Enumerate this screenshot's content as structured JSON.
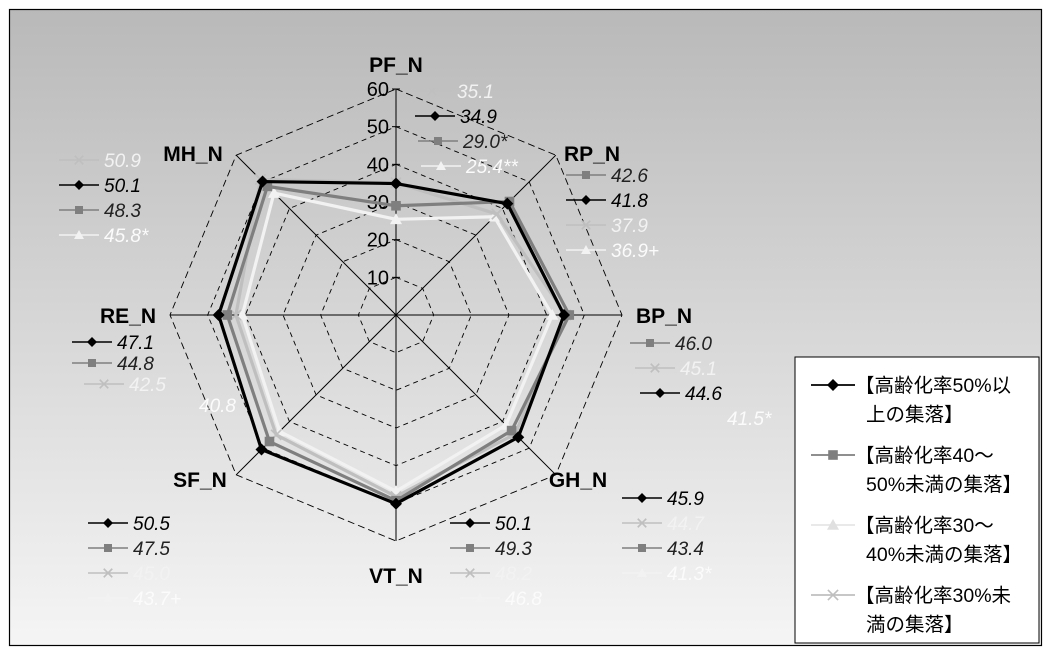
{
  "chart_data": {
    "type": "radar",
    "axes": [
      "PF_N",
      "RP_N",
      "BP_N",
      "GH_N",
      "VT_N",
      "SF_N",
      "RE_N",
      "MH_N"
    ],
    "rlim": [
      0,
      60
    ],
    "ticks": [
      "10",
      "20",
      "30",
      "40",
      "50",
      "60"
    ],
    "grid": "dashed",
    "legend_position": "right",
    "series": [
      {
        "name_lines": [
          "【高齢化率50%以",
          "上の集落】"
        ],
        "color": "#000000",
        "marker": "diamond",
        "values": [
          34.9,
          41.8,
          44.6,
          45.9,
          50.1,
          50.5,
          47.1,
          50.1
        ]
      },
      {
        "name_lines": [
          "【高齢化率40～",
          "50%未満の集落】"
        ],
        "color": "#7f7f7f",
        "marker": "square",
        "values": [
          29.0,
          42.6,
          46.0,
          43.4,
          49.3,
          47.5,
          44.8,
          48.3
        ]
      },
      {
        "name_lines": [
          "【高齢化率30～",
          "40%未満の集落】"
        ],
        "color": "#f2f2f2",
        "marker": "triangle",
        "values": [
          25.4,
          36.9,
          41.5,
          41.3,
          46.8,
          43.7,
          40.8,
          45.8
        ]
      },
      {
        "name_lines": [
          "【高齢化率30%未",
          "満の集落】"
        ],
        "color": "#bfbfbf",
        "marker": "x",
        "values": [
          35.1,
          37.9,
          45.1,
          44.7,
          48.2,
          45.0,
          42.5,
          50.9
        ]
      }
    ],
    "value_labels": {
      "PF_N": [
        {
          "s": 3,
          "text": "35.1"
        },
        {
          "s": 0,
          "text": "34.9"
        },
        {
          "s": 1,
          "text": "29.0*"
        },
        {
          "s": 2,
          "text": "25.4**"
        }
      ],
      "RP_N": [
        {
          "s": 1,
          "text": "42.6"
        },
        {
          "s": 0,
          "text": "41.8"
        },
        {
          "s": 3,
          "text": "37.9"
        },
        {
          "s": 2,
          "text": "36.9+"
        }
      ],
      "BP_N": [
        {
          "s": 1,
          "text": "46.0"
        },
        {
          "s": 3,
          "text": "45.1"
        },
        {
          "s": 0,
          "text": "44.6"
        },
        {
          "s": 2,
          "text": "41.5*"
        }
      ],
      "GH_N": [
        {
          "s": 0,
          "text": "45.9"
        },
        {
          "s": 3,
          "text": "44.7"
        },
        {
          "s": 1,
          "text": "43.4"
        },
        {
          "s": 2,
          "text": "41.3*"
        }
      ],
      "VT_N": [
        {
          "s": 0,
          "text": "50.1"
        },
        {
          "s": 1,
          "text": "49.3"
        },
        {
          "s": 3,
          "text": "48.2"
        },
        {
          "s": 2,
          "text": "46.8"
        }
      ],
      "SF_N": [
        {
          "s": 0,
          "text": "50.5"
        },
        {
          "s": 1,
          "text": "47.5"
        },
        {
          "s": 3,
          "text": "45.0"
        },
        {
          "s": 2,
          "text": "43.7+"
        }
      ],
      "RE_N": [
        {
          "s": 0,
          "text": "47.1"
        },
        {
          "s": 1,
          "text": "44.8"
        },
        {
          "s": 3,
          "text": "42.5"
        },
        {
          "s": 2,
          "text": "40.8"
        }
      ],
      "MH_N": [
        {
          "s": 3,
          "text": "50.9"
        },
        {
          "s": 0,
          "text": "50.1"
        },
        {
          "s": 1,
          "text": "48.3"
        },
        {
          "s": 2,
          "text": "45.8*"
        }
      ]
    }
  }
}
